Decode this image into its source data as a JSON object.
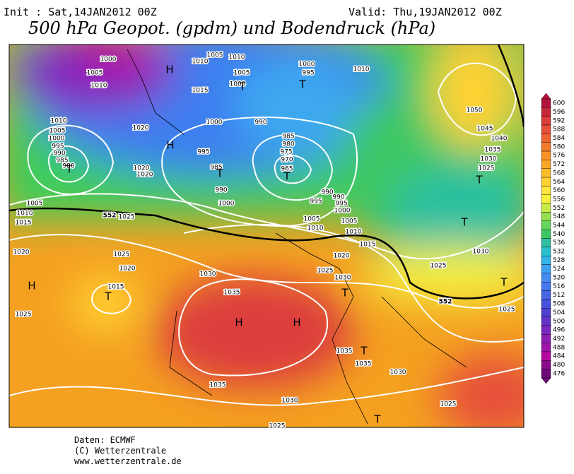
{
  "header": {
    "init": "Init : Sat,14JAN2012 00Z",
    "valid": "Valid: Thu,19JAN2012 00Z",
    "title": "500 hPa Geopot. (gpdm) und Bodendruck (hPa)"
  },
  "legend": {
    "values": [
      600,
      596,
      592,
      588,
      584,
      580,
      576,
      572,
      568,
      564,
      560,
      556,
      552,
      548,
      544,
      540,
      536,
      532,
      528,
      524,
      520,
      516,
      512,
      508,
      504,
      500,
      496,
      492,
      488,
      484,
      480,
      476
    ],
    "colors": [
      "#b4143c",
      "#c8283c",
      "#dc3c3c",
      "#e6503a",
      "#ee6432",
      "#f47a2a",
      "#f89226",
      "#fba626",
      "#fdbc2c",
      "#ffd232",
      "#ffe63c",
      "#f5f03c",
      "#c8ec46",
      "#96e050",
      "#64d45a",
      "#3cc864",
      "#2cc0a0",
      "#28c0d0",
      "#32b4e8",
      "#3ca0f0",
      "#468cf0",
      "#4678f0",
      "#4664e6",
      "#4650dc",
      "#5040d2",
      "#6432c8",
      "#7828be",
      "#8c1eb4",
      "#a014aa",
      "#b40aa0",
      "#8c0a8c",
      "#6e0a78"
    ]
  },
  "isobar_labels": [
    1000,
    1005,
    1010,
    1005,
    1010,
    1010,
    1005,
    1000,
    1015,
    1000,
    995,
    1010,
    1000,
    990,
    1010,
    1005,
    1000,
    995,
    990,
    985,
    980,
    1020,
    1020,
    1020,
    995,
    985,
    990,
    1000,
    985,
    980,
    975,
    970,
    965,
    990,
    995,
    990,
    995,
    1000,
    1005,
    1010,
    1005,
    1010,
    1015,
    1020,
    1025,
    1030,
    1025,
    1005,
    1010,
    1015,
    1020,
    1025,
    1020,
    1015,
    1025,
    1030,
    1035,
    1035,
    1035,
    1035,
    1030,
    1030,
    1025,
    1025,
    1025,
    1030,
    1025,
    1050,
    1045,
    1040,
    1035,
    1030,
    1025
  ],
  "contour_labels": [
    552,
    552
  ],
  "pressure_centers": [
    "H",
    "H",
    "T",
    "T",
    "T",
    "T",
    "T",
    "H",
    "T",
    "H",
    "H",
    "T",
    "T",
    "T",
    "T",
    "T",
    "T"
  ],
  "footer": [
    "Daten: ECMWF",
    "(C) Wetterzentrale",
    "www.wetterzentrale.de"
  ]
}
